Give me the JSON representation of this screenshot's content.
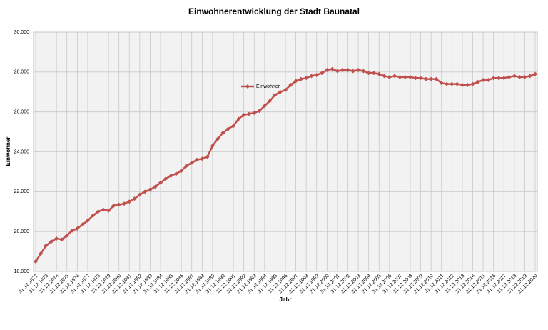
{
  "chart_data": {
    "type": "line",
    "title": "Einwohnerentwicklung der Stadt Baunatal",
    "x_label": "Jahr",
    "y_label": "Einwohner",
    "categories": [
      "31.12.1972",
      null,
      "31.12.1973",
      null,
      "31.12.1974",
      null,
      "31.12.1975",
      null,
      "31.12.1976",
      null,
      "31.12.1977",
      null,
      "31.12.1978",
      null,
      "31.12.1979",
      null,
      "31.12.1980",
      null,
      "31.12.1981",
      null,
      "31.12.1982",
      null,
      "31.12.1983",
      null,
      "31.12.1984",
      null,
      "31.12.1985",
      null,
      "31.12.1986",
      null,
      "31.12.1987",
      null,
      "31.12.1988",
      null,
      "31.12.1989",
      null,
      "31.12.1990",
      null,
      "31.12.1991",
      null,
      "31.12.1992",
      null,
      "31.12.1993",
      null,
      "31.12.1994",
      null,
      "31.12.1995",
      null,
      "31.12.1996",
      null,
      "31.12.1997",
      null,
      "31.12.1998",
      null,
      "31.12.1999",
      null,
      "31.12.2000",
      null,
      "31.12.2001",
      null,
      "31.12.2002",
      null,
      "31.12.2003",
      null,
      "31.12.2004",
      null,
      "31.12.2005",
      null,
      "31.12.2006",
      null,
      "31.12.2007",
      null,
      "31.12.2008",
      null,
      "31.12.2009",
      null,
      "31.12.2010",
      null,
      "31.12.2011",
      null,
      "31.12.2012",
      null,
      "31.12.2013",
      null,
      "31.12.2014",
      null,
      "31.12.2015",
      null,
      "31.12.2016",
      null,
      "31.12.2017",
      null,
      "31.12.2018",
      null,
      "31.12.2019",
      null,
      "31.12.2020"
    ],
    "series": [
      {
        "name": "Einwohner",
        "color": "#c0504d",
        "values": [
          18500,
          18900,
          19300,
          19500,
          19650,
          19600,
          19800,
          20050,
          20150,
          20350,
          20550,
          20800,
          21000,
          21100,
          21050,
          21300,
          21350,
          21400,
          21500,
          21650,
          21850,
          22000,
          22100,
          22250,
          22450,
          22650,
          22800,
          22900,
          23050,
          23300,
          23450,
          23600,
          23650,
          23750,
          24300,
          24650,
          24950,
          25150,
          25300,
          25650,
          25850,
          25900,
          25950,
          26050,
          26300,
          26550,
          26850,
          27000,
          27100,
          27350,
          27550,
          27650,
          27700,
          27800,
          27850,
          27950,
          28100,
          28150,
          28050,
          28100,
          28100,
          28050,
          28100,
          28050,
          27950,
          27950,
          27900,
          27800,
          27750,
          27800,
          27750,
          27750,
          27750,
          27700,
          27700,
          27650,
          27650,
          27650,
          27450,
          27400,
          27400,
          27400,
          27350,
          27350,
          27400,
          27500,
          27600,
          27600,
          27700,
          27700,
          27700,
          27750,
          27800,
          27750,
          27750,
          27800,
          27900
        ]
      }
    ],
    "ylim": [
      18000,
      30000
    ],
    "yticks": [
      {
        "value": 18000,
        "label": "18.000"
      },
      {
        "value": 20000,
        "label": "20.000"
      },
      {
        "value": 22000,
        "label": "22.000"
      },
      {
        "value": 24000,
        "label": "24.000"
      },
      {
        "value": 26000,
        "label": "26.000"
      },
      {
        "value": 28000,
        "label": "28.000"
      },
      {
        "value": 30000,
        "label": "30.000"
      }
    ],
    "grid": true
  }
}
